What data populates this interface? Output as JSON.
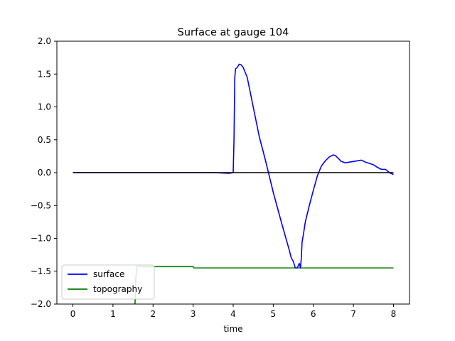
{
  "chart_data": {
    "type": "line",
    "title": "Surface at gauge 104",
    "xlabel": "time",
    "ylabel": "",
    "xlim": [
      -0.4,
      8.4
    ],
    "ylim": [
      -2.0,
      2.0
    ],
    "xticks": [
      0,
      1,
      2,
      3,
      4,
      5,
      6,
      7,
      8
    ],
    "xtick_labels": [
      "0",
      "1",
      "2",
      "3",
      "4",
      "5",
      "6",
      "7",
      "8"
    ],
    "yticks": [
      -2.0,
      -1.5,
      -1.0,
      -0.5,
      0.0,
      0.5,
      1.0,
      1.5,
      2.0
    ],
    "ytick_labels": [
      "−2.0",
      "−1.5",
      "−1.0",
      "−0.5",
      "0.0",
      "0.5",
      "1.0",
      "1.5",
      "2.0"
    ],
    "grid": false,
    "legend": {
      "position": "lower-left",
      "entries": [
        "surface",
        "topography"
      ]
    },
    "series": [
      {
        "name": "surface",
        "color": "#0000ff",
        "x": [
          0,
          1,
          2,
          3,
          3.5,
          3.9,
          4.0,
          4.02,
          4.04,
          4.06,
          4.1,
          4.15,
          4.2,
          4.25,
          4.35,
          4.5,
          4.65,
          4.8,
          5.0,
          5.2,
          5.4,
          5.45,
          5.5,
          5.55,
          5.6,
          5.65,
          5.68,
          5.7,
          5.72,
          5.75,
          5.8,
          5.9,
          6.0,
          6.1,
          6.2,
          6.3,
          6.4,
          6.5,
          6.55,
          6.6,
          6.7,
          6.8,
          6.9,
          7.0,
          7.1,
          7.2,
          7.3,
          7.4,
          7.5,
          7.6,
          7.7,
          7.8,
          7.9,
          8.0
        ],
        "y": [
          0.0,
          0.0,
          0.0,
          0.0,
          0.0,
          -0.01,
          0.0,
          0.5,
          1.45,
          1.58,
          1.6,
          1.65,
          1.64,
          1.6,
          1.45,
          1.0,
          0.55,
          0.2,
          -0.3,
          -0.75,
          -1.18,
          -1.3,
          -1.35,
          -1.45,
          -1.45,
          -1.38,
          -1.45,
          -1.3,
          -1.05,
          -0.95,
          -0.75,
          -0.5,
          -0.27,
          -0.05,
          0.1,
          0.18,
          0.24,
          0.27,
          0.26,
          0.23,
          0.17,
          0.15,
          0.16,
          0.17,
          0.18,
          0.19,
          0.16,
          0.14,
          0.12,
          0.08,
          0.05,
          0.05,
          0.0,
          -0.03
        ]
      },
      {
        "name": "topography",
        "color": "#008000",
        "x": [
          1.55,
          1.57,
          1.6,
          2.0,
          2.5,
          3.0,
          3.02,
          4.0,
          5.0,
          6.0,
          7.0,
          8.0
        ],
        "y": [
          -2.0,
          -1.6,
          -1.43,
          -1.43,
          -1.43,
          -1.43,
          -1.45,
          -1.45,
          -1.45,
          -1.45,
          -1.45,
          -1.45
        ]
      },
      {
        "name": "",
        "color": "#000000",
        "x": [
          0,
          8
        ],
        "y": [
          0.0,
          0.0
        ]
      }
    ]
  }
}
